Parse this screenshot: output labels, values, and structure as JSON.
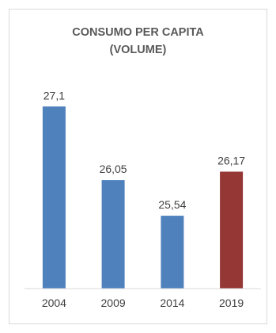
{
  "chart_data": {
    "type": "bar",
    "title_lines": [
      "CONSUMO PER CAPITA",
      "(VOLUME)"
    ],
    "categories": [
      "2004",
      "2009",
      "2014",
      "2019"
    ],
    "values": [
      27.1,
      26.05,
      25.54,
      26.17
    ],
    "data_labels": [
      "27,1",
      "26,05",
      "25,54",
      "26,17"
    ],
    "bar_colors": [
      "#4f81bd",
      "#4f81bd",
      "#4f81bd",
      "#953735"
    ],
    "xlabel": "",
    "ylabel": "",
    "ylim": [
      24.5,
      27.5
    ],
    "grid": false,
    "legend": "none"
  }
}
